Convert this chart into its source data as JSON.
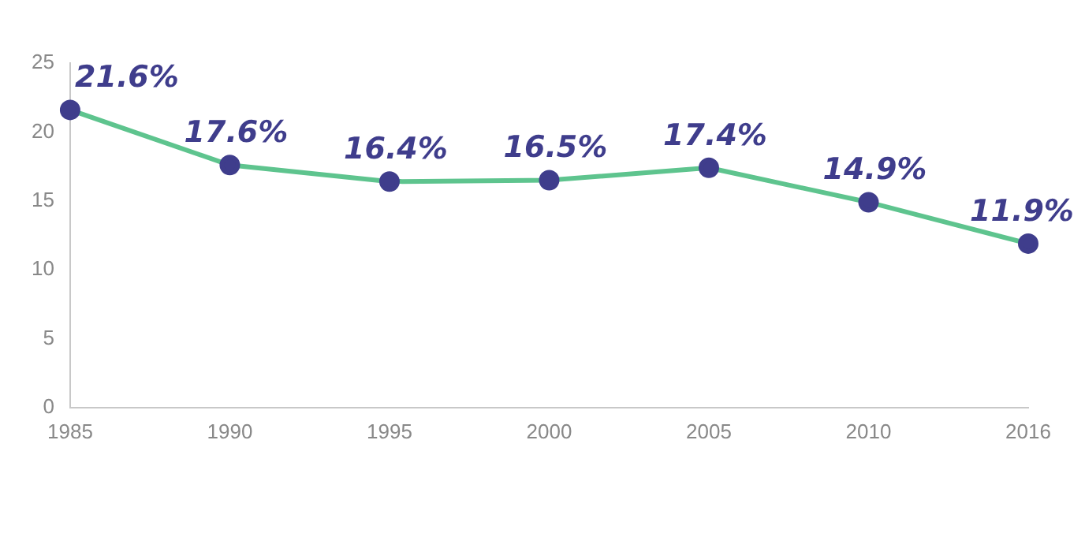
{
  "chart_data": {
    "type": "line",
    "categories": [
      "1985",
      "1990",
      "1995",
      "2000",
      "2005",
      "2010",
      "2016"
    ],
    "series": [
      {
        "color": "#5ec48e",
        "colors": [
          "#3f3d8c",
          "#3f3d8c",
          "#3f3d8c",
          "#3f3d8c",
          "#3f3d8c",
          "#3f3d8c",
          "#3f3d8c"
        ],
        "values": [
          21.6,
          17.6,
          16.4,
          16.5,
          17.4,
          14.9,
          11.9
        ],
        "value_labels": [
          "21.6%",
          "17.6%",
          "16.4%",
          "16.5%",
          "17.4%",
          "14.9%",
          "11.9%"
        ]
      }
    ],
    "ylim": [
      0,
      25
    ],
    "yticks": [
      0,
      5,
      10,
      15,
      20,
      25
    ],
    "grid": false,
    "legend": false,
    "marker": "circle",
    "line_style": "solid"
  }
}
